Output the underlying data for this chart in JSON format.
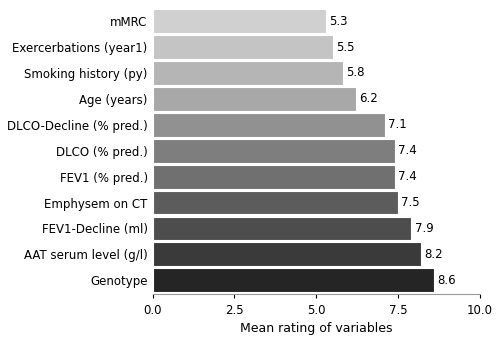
{
  "categories": [
    "Genotype",
    "AAT serum level (g/l)",
    "FEV1-Decline (ml)",
    "Emphysem on CT",
    "FEV1 (% pred.)",
    "DLCO (% pred.)",
    "DLCO-Decline (% pred.)",
    "Age (years)",
    "Smoking history (py)",
    "Exercerbations (year1)",
    "mMRC"
  ],
  "values": [
    8.6,
    8.2,
    7.9,
    7.5,
    7.4,
    7.4,
    7.1,
    6.2,
    5.8,
    5.5,
    5.3
  ],
  "bar_colors": [
    "#252525",
    "#3a3a3a",
    "#4d4d4d",
    "#5c5c5c",
    "#707070",
    "#7e7e7e",
    "#919191",
    "#a8a8a8",
    "#b5b5b5",
    "#c4c4c4",
    "#d0d0d0"
  ],
  "xlabel": "Mean rating of variables",
  "xlim": [
    0.0,
    10.0
  ],
  "xticks": [
    0.0,
    2.5,
    5.0,
    7.5,
    10.0
  ],
  "value_label_fontsize": 8.5,
  "axis_label_fontsize": 9,
  "tick_fontsize": 8.5,
  "background_color": "#ffffff",
  "bar_height": 0.92
}
